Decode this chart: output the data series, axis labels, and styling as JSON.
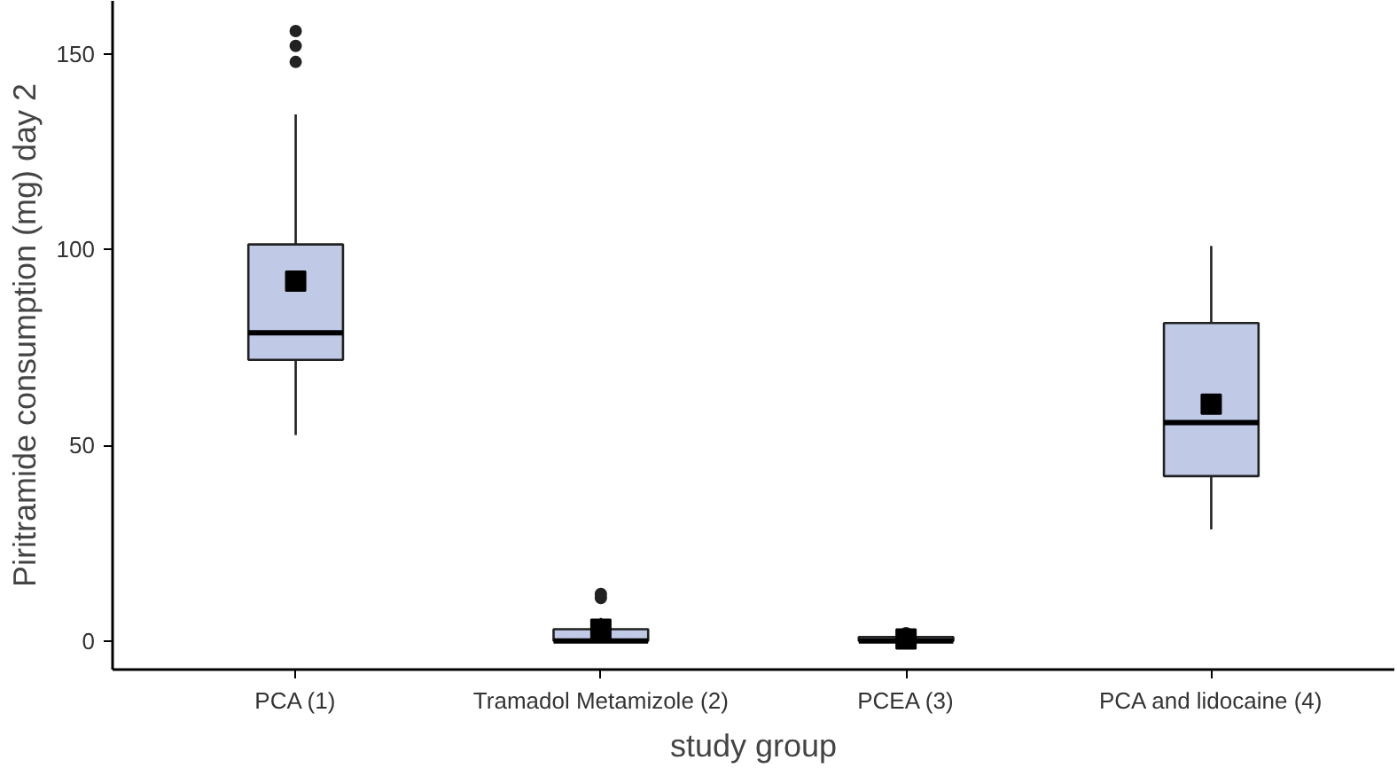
{
  "chart_data": {
    "type": "box",
    "xlabel": "study group",
    "ylabel": "Piritramide consumption (mg) day 2",
    "categories": [
      "PCA (1)",
      "Tramadol Metamizole (2)",
      "PCEA (3)",
      "PCA and lidocaine (4)"
    ],
    "boxes": [
      {
        "low": 52.6,
        "q1": 71.8,
        "median": 78.7,
        "q3": 101.3,
        "high": 134.5,
        "mean": 91.9,
        "outliers": [
          147.9,
          152,
          155.8
        ]
      },
      {
        "low": 0,
        "q1": 0,
        "median": 0,
        "q3": 3,
        "high": 5.9,
        "mean": 3,
        "outliers": [
          11,
          12
        ]
      },
      {
        "low": 0,
        "q1": 0,
        "median": 0,
        "q3": 1,
        "high": 1,
        "mean": 0.5,
        "outliers": [
          2
        ]
      },
      {
        "low": 28.5,
        "q1": 42.1,
        "median": 55.8,
        "q3": 81.2,
        "high": 100.9,
        "mean": 60.5
      }
    ],
    "color": "#c0c9e6",
    "ylim": [
      -7.3,
      163.5
    ],
    "yticks": [
      0,
      50,
      100,
      150
    ],
    "grid": false,
    "marker": "square"
  }
}
